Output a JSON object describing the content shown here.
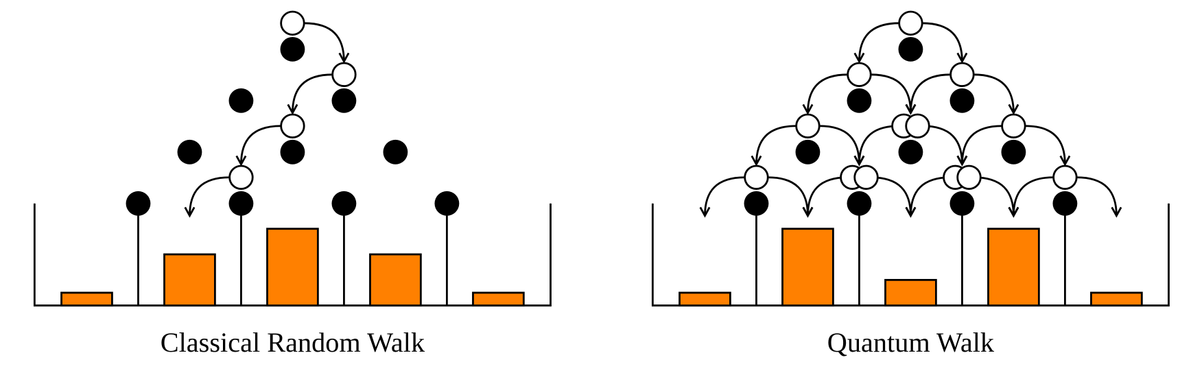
{
  "panels": [
    {
      "caption": "Classical Random Walk",
      "bar_values": [
        1,
        4,
        6,
        4,
        1
      ]
    },
    {
      "caption": "Quantum Walk",
      "bar_values": [
        1,
        6,
        2,
        6,
        1
      ]
    }
  ]
}
